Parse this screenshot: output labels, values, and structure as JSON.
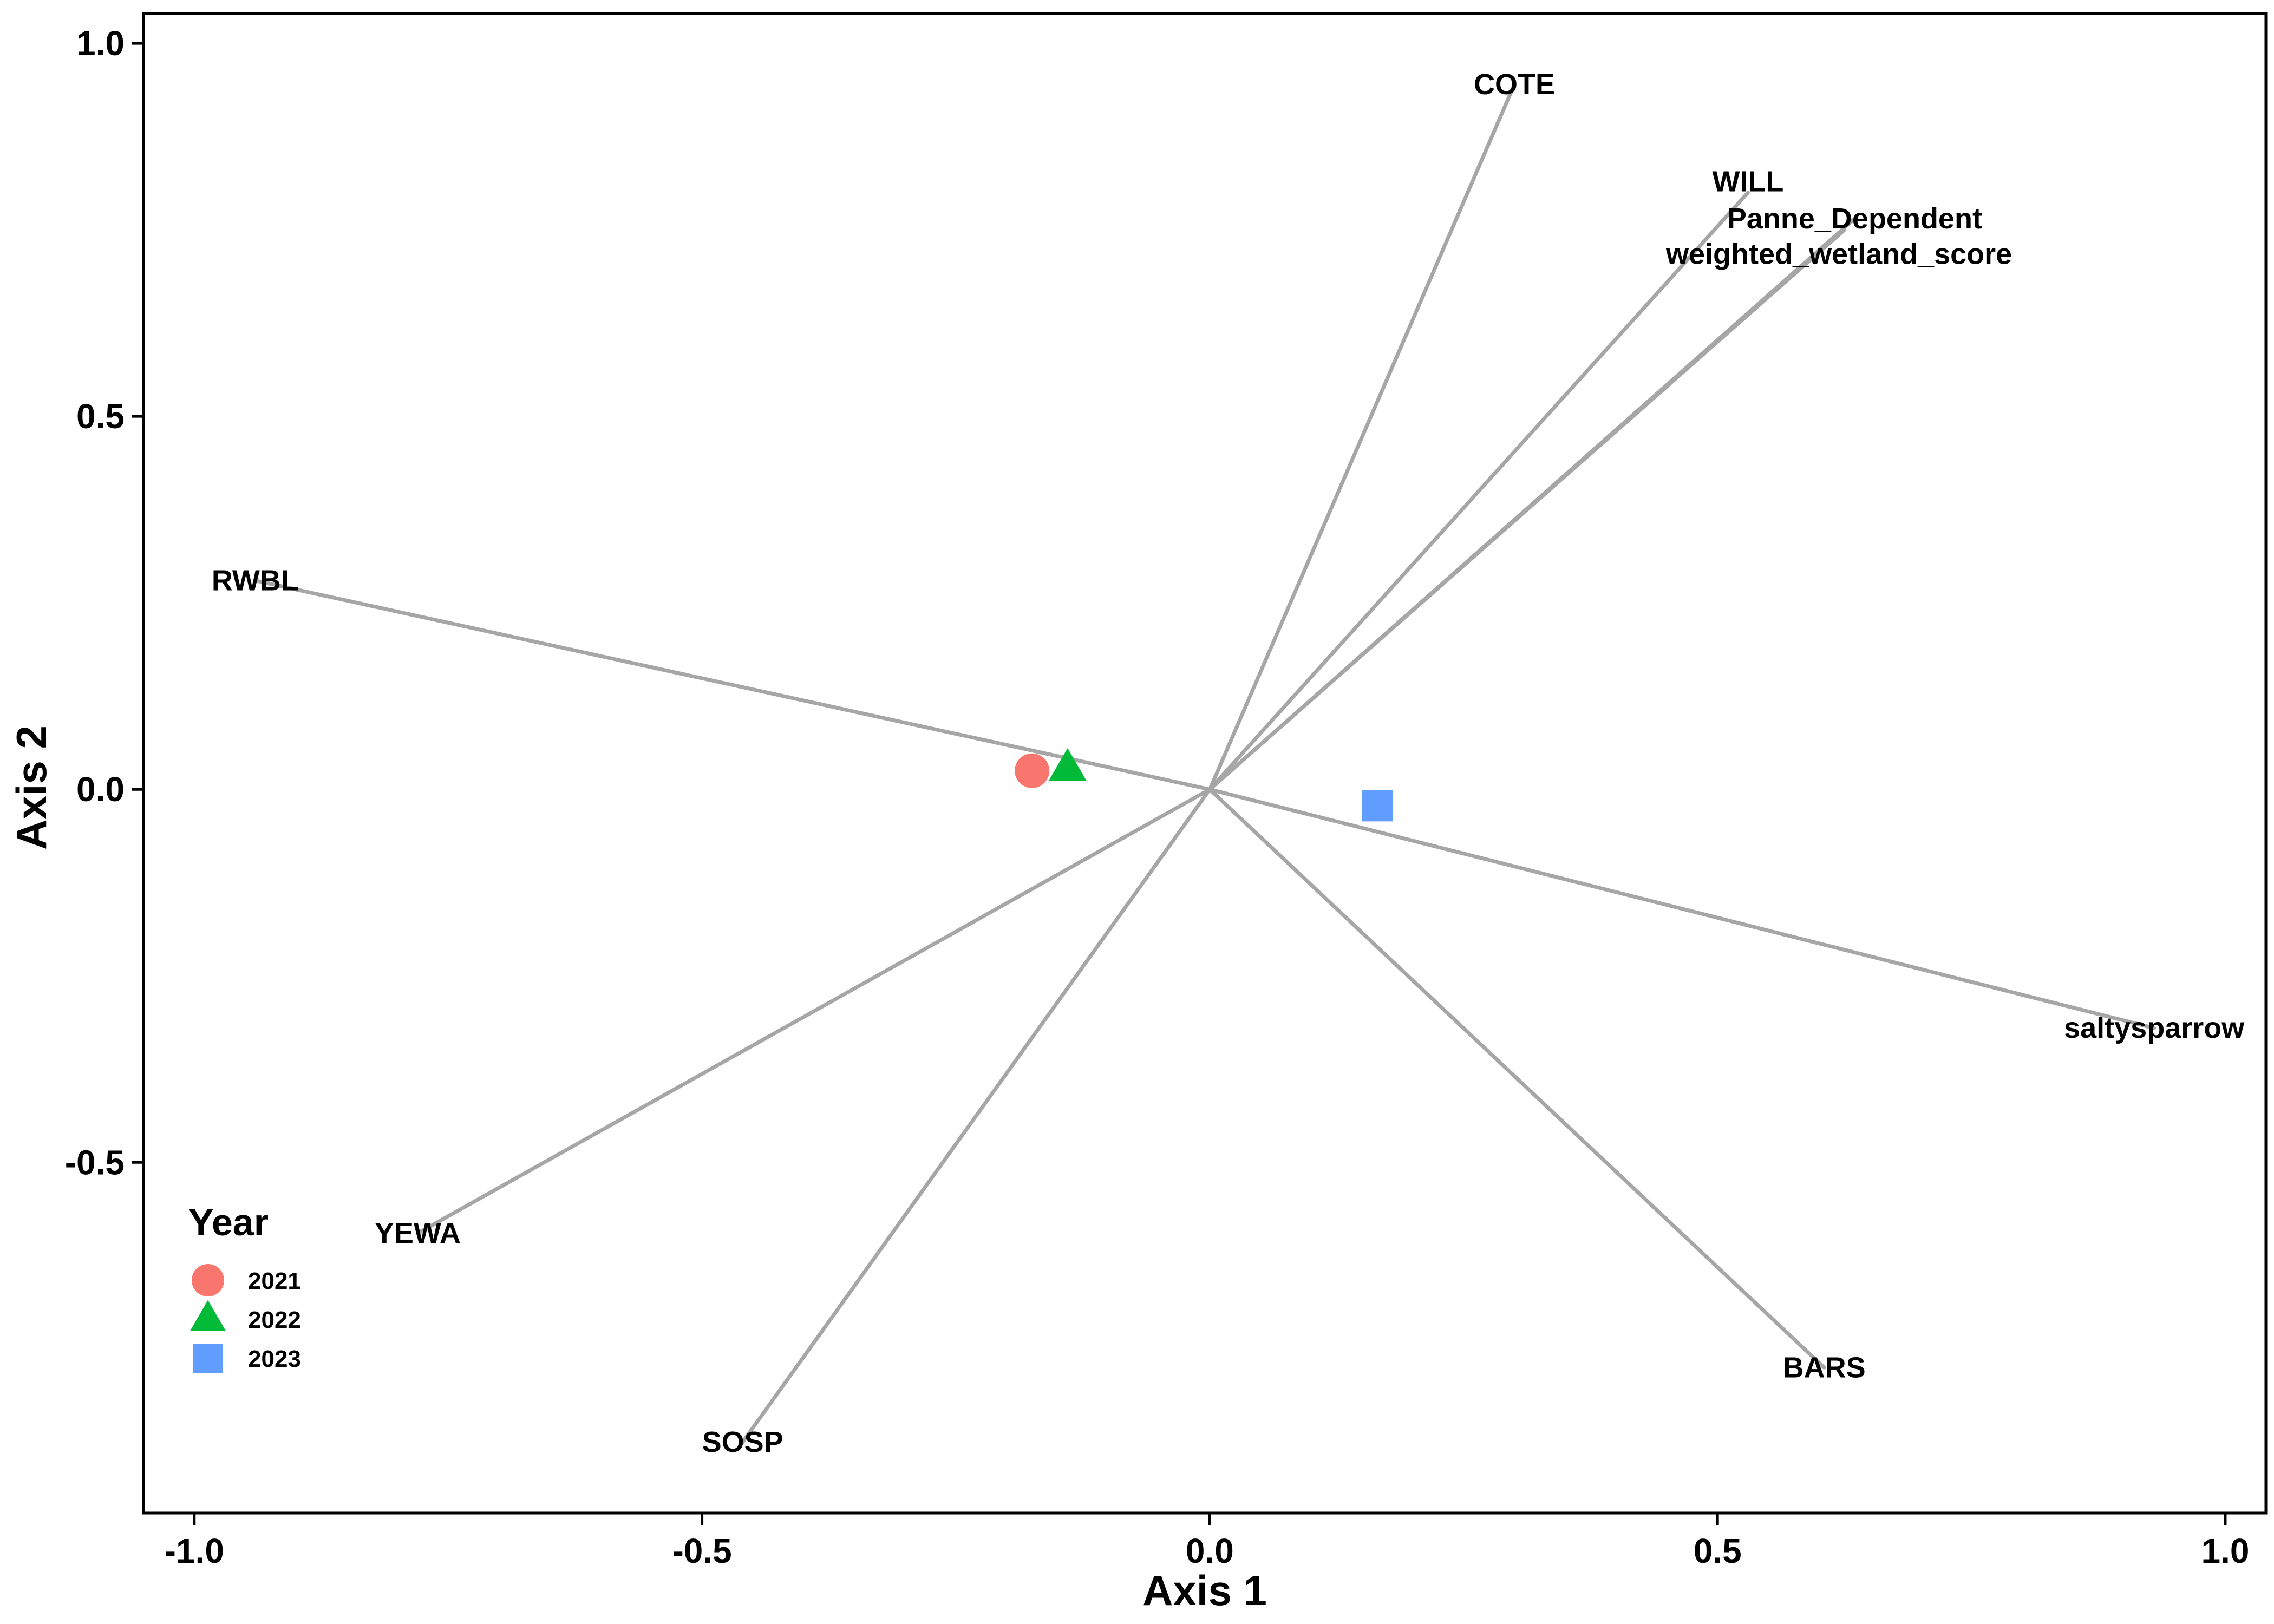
{
  "chart_data": {
    "type": "scatter",
    "title": "",
    "xlabel": "Axis 1",
    "ylabel": "Axis 2",
    "xlim": [
      -1.05,
      1.04
    ],
    "ylim": [
      -0.97,
      1.04
    ],
    "xticks": [
      {
        "value": -1.0,
        "label": "-1.0"
      },
      {
        "value": -0.5,
        "label": "-0.5"
      },
      {
        "value": 0.0,
        "label": "0.0"
      },
      {
        "value": 0.5,
        "label": "0.5"
      },
      {
        "value": 1.0,
        "label": "1.0"
      }
    ],
    "yticks": [
      {
        "value": -0.5,
        "label": "-0.5"
      },
      {
        "value": 0.0,
        "label": "0.0"
      },
      {
        "value": 0.5,
        "label": "0.5"
      },
      {
        "value": 1.0,
        "label": "1.0"
      }
    ],
    "grid": false,
    "legend": {
      "title": "Year",
      "position": "bottom-left"
    },
    "series": [
      {
        "name": "2021",
        "shape": "circle",
        "color": "#F8766D",
        "points": [
          {
            "x": -0.175,
            "y": 0.025
          }
        ]
      },
      {
        "name": "2022",
        "shape": "triangle",
        "color": "#00BA38",
        "points": [
          {
            "x": -0.14,
            "y": 0.028
          }
        ]
      },
      {
        "name": "2023",
        "shape": "square",
        "color": "#619CFF",
        "points": [
          {
            "x": 0.165,
            "y": -0.022
          }
        ]
      }
    ],
    "vectors": [
      {
        "label": "COTE",
        "x": 0.3,
        "y": 0.945
      },
      {
        "label": "WILL",
        "x": 0.53,
        "y": 0.8
      },
      {
        "label": "Panne_Dependent",
        "x": 0.635,
        "y": 0.765
      },
      {
        "label": "weighted_wetland_score",
        "x": 0.625,
        "y": 0.75
      },
      {
        "label": "RWBL",
        "x": -0.94,
        "y": 0.28
      },
      {
        "label": "saltysparrow",
        "x": 0.93,
        "y": -0.32
      },
      {
        "label": "YEWA",
        "x": -0.78,
        "y": -0.595
      },
      {
        "label": "SOSP",
        "x": -0.46,
        "y": -0.875
      },
      {
        "label": "BARS",
        "x": 0.605,
        "y": -0.775
      }
    ],
    "vector_color": "#A6A6A6"
  }
}
